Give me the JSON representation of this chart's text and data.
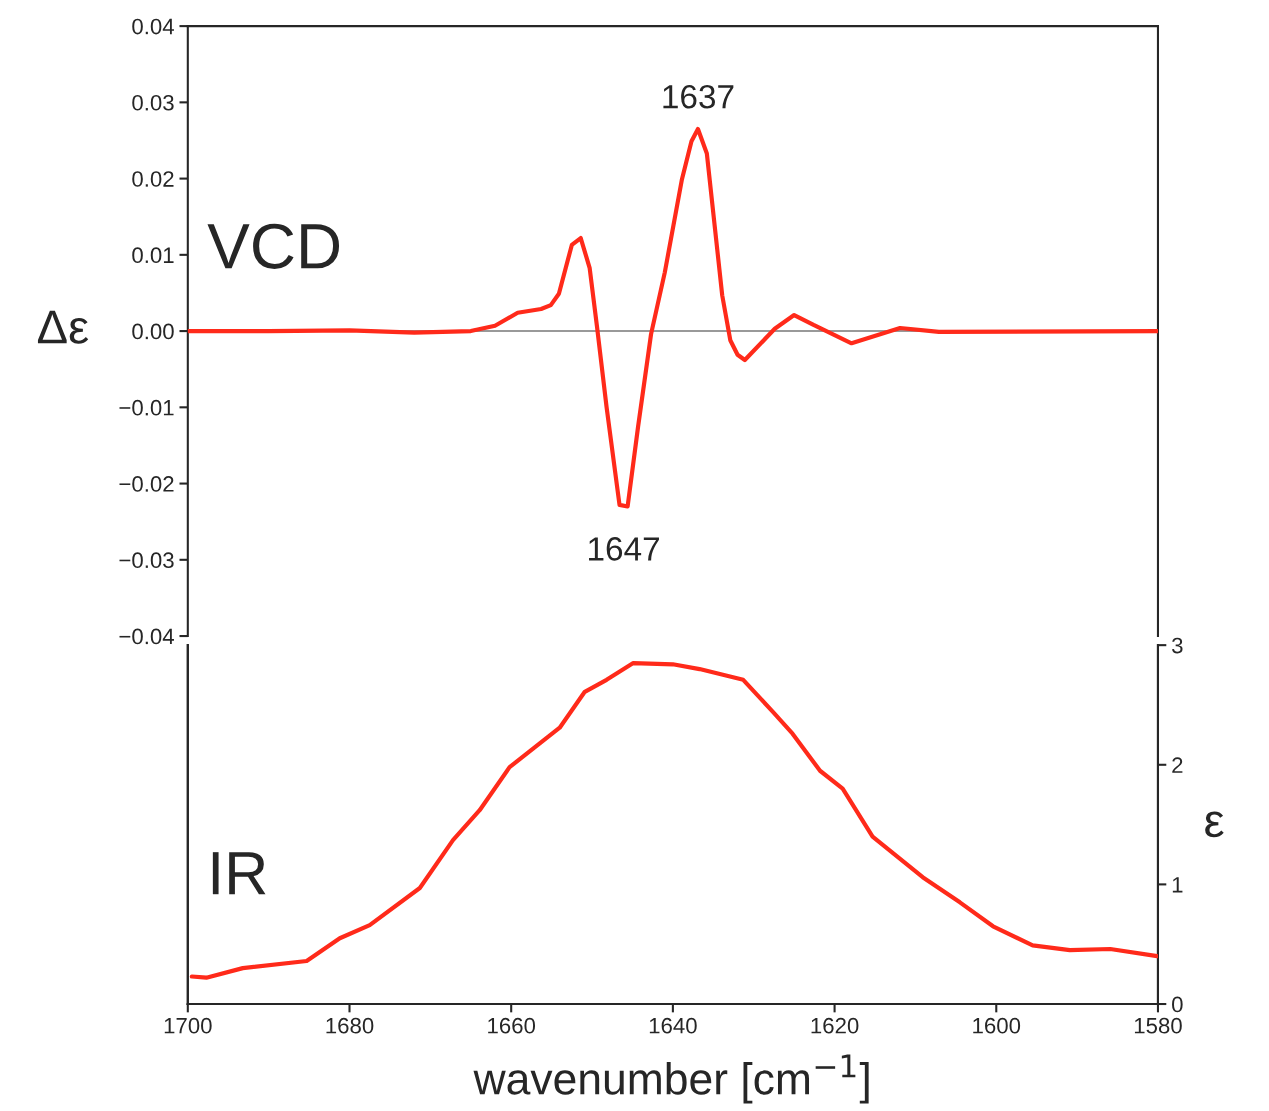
{
  "chart_data": [
    {
      "type": "line",
      "ylabel": "Δε",
      "xlim": [
        1700,
        1580
      ],
      "ylim": [
        -0.04,
        0.04
      ],
      "yticks": [
        {
          "value": -0.04,
          "label": "−0.04"
        },
        {
          "value": -0.03,
          "label": "−0.03"
        },
        {
          "value": -0.02,
          "label": "−0.02"
        },
        {
          "value": -0.01,
          "label": "−0.01"
        },
        {
          "value": 0,
          "label": "0.00"
        },
        {
          "value": 0.01,
          "label": "0.01"
        },
        {
          "value": 0.02,
          "label": "0.02"
        },
        {
          "value": 0.03,
          "label": "0.03"
        },
        {
          "value": 0.04,
          "label": "0.04"
        }
      ],
      "tick_labels": "y",
      "grid": false,
      "ref_lines": [
        {
          "axis": "y",
          "value": 0,
          "color": "#999999"
        }
      ],
      "annotations": [
        "VCD",
        {
          "text": "1637",
          "x": 1636.9,
          "y": 0.0265
        },
        {
          "text": "1647",
          "x": 1646.1,
          "y": -0.0229
        }
      ],
      "series": [
        {
          "color": "#ff2a1a",
          "x": [
            1700,
            1690,
            1680,
            1672,
            1665,
            1662,
            1659.2,
            1656.3,
            1655.1,
            1654.1,
            1652.5,
            1651.4,
            1650.3,
            1649.4,
            1648.2,
            1646.6,
            1645.6,
            1644.3,
            1642.7,
            1641.0,
            1638.9,
            1637.7,
            1636.9,
            1635.8,
            1633.9,
            1632.9,
            1632.0,
            1631.1,
            1627.4,
            1625.0,
            1622.6,
            1617.9,
            1611.9,
            1607.1,
            1580
          ],
          "values": [
            0.0,
            0.0,
            0.0001,
            -0.0002,
            0.0,
            0.0007,
            0.0024,
            0.0029,
            0.0034,
            0.0049,
            0.0113,
            0.0122,
            0.0083,
            0.0007,
            -0.01,
            -0.0228,
            -0.023,
            -0.0125,
            -0.0004,
            0.0077,
            0.0198,
            0.0249,
            0.0265,
            0.0233,
            0.0047,
            -0.0012,
            -0.0031,
            -0.0038,
            0.0003,
            0.0021,
            0.0008,
            -0.0016,
            0.0004,
            -0.0001,
            0.0
          ]
        }
      ]
    },
    {
      "type": "line",
      "xlabel": "wavenumber [cm$^{−1}$]",
      "y2label": "ε",
      "xlim": [
        1700,
        1580
      ],
      "xticks": [
        1700,
        1680,
        1660,
        1640,
        1620,
        1600,
        1580
      ],
      "y2lim": [
        0,
        3
      ],
      "y2ticks": [
        0,
        1,
        2,
        3
      ],
      "grid": false,
      "annotations": [
        "IR"
      ],
      "series": [
        {
          "color": "#ff2a1a",
          "axis": "y2",
          "x": [
            1699.5,
            1697.7,
            1693.2,
            1685.3,
            1681.2,
            1677.5,
            1671.3,
            1667.2,
            1663.9,
            1660.2,
            1654.0,
            1650.9,
            1648.2,
            1644.9,
            1640.0,
            1636.7,
            1631.3,
            1627.6,
            1625.2,
            1621.8,
            1619.0,
            1615.3,
            1609.1,
            1604.5,
            1600.4,
            1595.5,
            1590.9,
            1585.9,
            1580.1
          ],
          "values": [
            0.23,
            0.22,
            0.3,
            0.36,
            0.55,
            0.66,
            0.97,
            1.37,
            1.62,
            1.98,
            2.31,
            2.61,
            2.71,
            2.85,
            2.84,
            2.8,
            2.71,
            2.44,
            2.26,
            1.95,
            1.8,
            1.4,
            1.06,
            0.85,
            0.65,
            0.49,
            0.45,
            0.46,
            0.4
          ]
        }
      ]
    }
  ]
}
